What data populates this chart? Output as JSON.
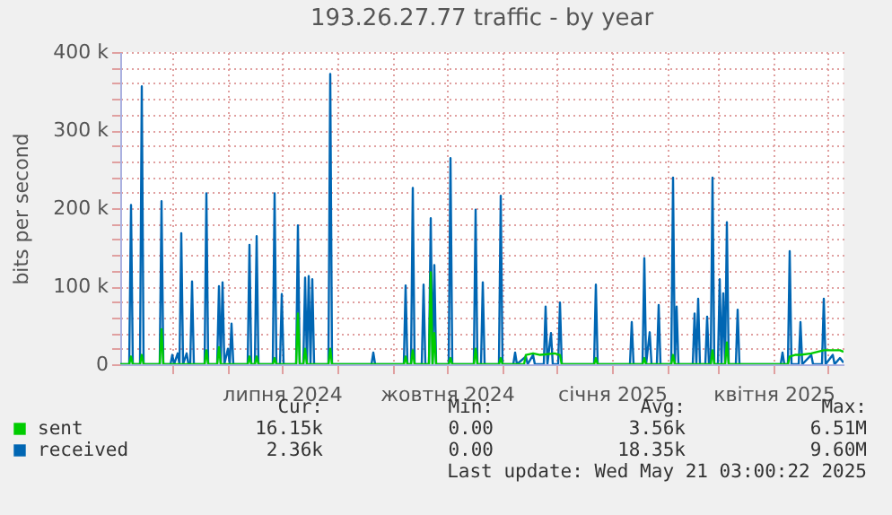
{
  "chart_data": {
    "type": "line",
    "title": "193.26.27.77 traffic - by year",
    "ylabel": "bits per second",
    "xlim": [
      "2024-04-02",
      "2025-05-10"
    ],
    "ylim": [
      0,
      400000
    ],
    "xticks": [
      {
        "value": "2024-05-01",
        "label": null
      },
      {
        "value": "2024-06-01",
        "label": null
      },
      {
        "value": "2024-07-01",
        "label": "липня 2024"
      },
      {
        "value": "2024-08-01",
        "label": null
      },
      {
        "value": "2024-09-01",
        "label": null
      },
      {
        "value": "2024-10-01",
        "label": "жовтня 2024"
      },
      {
        "value": "2024-11-01",
        "label": null
      },
      {
        "value": "2024-12-01",
        "label": null
      },
      {
        "value": "2025-01-01",
        "label": "січня 2025"
      },
      {
        "value": "2025-02-01",
        "label": null
      },
      {
        "value": "2025-03-01",
        "label": null
      },
      {
        "value": "2025-04-01",
        "label": "квітня 2025"
      },
      {
        "value": "2025-05-01",
        "label": null
      }
    ],
    "yticks": [
      {
        "value": 0,
        "label": "0"
      },
      {
        "value": 20000,
        "label": null
      },
      {
        "value": 40000,
        "label": null
      },
      {
        "value": 60000,
        "label": null
      },
      {
        "value": 80000,
        "label": null
      },
      {
        "value": 100000,
        "label": "100 k"
      },
      {
        "value": 120000,
        "label": null
      },
      {
        "value": 140000,
        "label": null
      },
      {
        "value": 160000,
        "label": null
      },
      {
        "value": 180000,
        "label": null
      },
      {
        "value": 200000,
        "label": "200 k"
      },
      {
        "value": 220000,
        "label": null
      },
      {
        "value": 240000,
        "label": null
      },
      {
        "value": 260000,
        "label": null
      },
      {
        "value": 280000,
        "label": null
      },
      {
        "value": 300000,
        "label": "300 k"
      },
      {
        "value": 320000,
        "label": null
      },
      {
        "value": 340000,
        "label": null
      },
      {
        "value": 360000,
        "label": null
      },
      {
        "value": 380000,
        "label": null
      },
      {
        "value": 400000,
        "label": "400 k"
      }
    ],
    "grid": true,
    "legend": "bottom left",
    "series": [
      {
        "name": "sent",
        "color": "#00cc00",
        "x": [
          "2024-04-02",
          "2024-04-07",
          "2024-04-08",
          "2024-04-09",
          "2024-04-13",
          "2024-04-14",
          "2024-04-15",
          "2024-04-24",
          "2024-04-25",
          "2024-04-26",
          "2024-05-19",
          "2024-05-20",
          "2024-05-21",
          "2024-05-26",
          "2024-05-27",
          "2024-05-28",
          "2024-06-12",
          "2024-06-13",
          "2024-06-14",
          "2024-06-16",
          "2024-06-17",
          "2024-06-18",
          "2024-06-26",
          "2024-06-27",
          "2024-06-28",
          "2024-07-09",
          "2024-07-10",
          "2024-07-11",
          "2024-07-13",
          "2024-07-14",
          "2024-07-15",
          "2024-07-27",
          "2024-07-28",
          "2024-07-29",
          "2024-09-07",
          "2024-09-08",
          "2024-09-09",
          "2024-09-11",
          "2024-09-12",
          "2024-09-13",
          "2024-09-21",
          "2024-09-22",
          "2024-09-23",
          "2024-09-24",
          "2024-09-25",
          "2024-10-02",
          "2024-10-03",
          "2024-10-04",
          "2024-10-16",
          "2024-10-17",
          "2024-10-18",
          "2024-10-30",
          "2024-10-31",
          "2024-11-01",
          "2024-11-08",
          "2024-11-13",
          "2024-11-14",
          "2024-11-18",
          "2024-11-22",
          "2024-11-26",
          "2024-11-30",
          "2024-12-03",
          "2024-12-04",
          "2024-12-22",
          "2024-12-23",
          "2024-12-24",
          "2025-01-18",
          "2025-01-19",
          "2025-01-20",
          "2025-02-03",
          "2025-02-04",
          "2025-02-05",
          "2025-02-25",
          "2025-02-26",
          "2025-02-27",
          "2025-03-05",
          "2025-03-06",
          "2025-03-07",
          "2025-04-09",
          "2025-04-10",
          "2025-04-13",
          "2025-04-16",
          "2025-04-22",
          "2025-04-29",
          "2025-05-04",
          "2025-05-08",
          "2025-05-10"
        ],
        "values": [
          0,
          0,
          10000,
          0,
          0,
          12000,
          0,
          0,
          45000,
          0,
          0,
          18000,
          0,
          0,
          22000,
          0,
          0,
          10000,
          0,
          0,
          10000,
          0,
          0,
          8000,
          0,
          0,
          65000,
          0,
          0,
          20000,
          0,
          0,
          20000,
          0,
          0,
          10000,
          0,
          0,
          18000,
          0,
          0,
          118000,
          0,
          40000,
          0,
          0,
          8000,
          0,
          0,
          20000,
          0,
          0,
          8000,
          0,
          0,
          0,
          12000,
          14000,
          12000,
          13000,
          14000,
          12000,
          0,
          0,
          8000,
          0,
          0,
          8000,
          0,
          0,
          12000,
          0,
          0,
          18000,
          0,
          0,
          28000,
          0,
          0,
          10000,
          12000,
          12000,
          14000,
          18000,
          18000,
          18000,
          16000
        ]
      },
      {
        "name": "received",
        "color": "#0066b3",
        "x": [
          "2024-04-02",
          "2024-04-07",
          "2024-04-08",
          "2024-04-09",
          "2024-04-13",
          "2024-04-14",
          "2024-04-15",
          "2024-04-24",
          "2024-04-25",
          "2024-04-26",
          "2024-04-30",
          "2024-05-01",
          "2024-05-02",
          "2024-05-04",
          "2024-05-05",
          "2024-05-06",
          "2024-05-07",
          "2024-05-09",
          "2024-05-10",
          "2024-05-11",
          "2024-05-12",
          "2024-05-13",
          "2024-05-19",
          "2024-05-20",
          "2024-05-21",
          "2024-05-26",
          "2024-05-27",
          "2024-05-28",
          "2024-05-29",
          "2024-05-30",
          "2024-06-01",
          "2024-06-02",
          "2024-06-03",
          "2024-06-04",
          "2024-06-12",
          "2024-06-13",
          "2024-06-14",
          "2024-06-16",
          "2024-06-17",
          "2024-06-18",
          "2024-06-26",
          "2024-06-27",
          "2024-06-28",
          "2024-06-30",
          "2024-07-01",
          "2024-07-02",
          "2024-07-09",
          "2024-07-10",
          "2024-07-11",
          "2024-07-13",
          "2024-07-14",
          "2024-07-15",
          "2024-07-16",
          "2024-07-17",
          "2024-07-18",
          "2024-07-19",
          "2024-07-27",
          "2024-07-28",
          "2024-07-29",
          "2024-08-20",
          "2024-08-21",
          "2024-08-22",
          "2024-09-07",
          "2024-09-08",
          "2024-09-09",
          "2024-09-11",
          "2024-09-12",
          "2024-09-13",
          "2024-09-17",
          "2024-09-18",
          "2024-09-19",
          "2024-09-21",
          "2024-09-22",
          "2024-09-23",
          "2024-09-24",
          "2024-09-25",
          "2024-10-02",
          "2024-10-03",
          "2024-10-04",
          "2024-10-16",
          "2024-10-17",
          "2024-10-18",
          "2024-10-20",
          "2024-10-21",
          "2024-10-22",
          "2024-10-30",
          "2024-10-31",
          "2024-11-01",
          "2024-11-07",
          "2024-11-08",
          "2024-11-09",
          "2024-11-14",
          "2024-11-15",
          "2024-11-18",
          "2024-11-19",
          "2024-11-24",
          "2024-11-25",
          "2024-11-26",
          "2024-11-28",
          "2024-11-29",
          "2024-12-02",
          "2024-12-03",
          "2024-12-04",
          "2024-12-22",
          "2024-12-23",
          "2024-12-24",
          "2025-01-11",
          "2025-01-12",
          "2025-01-13",
          "2025-01-18",
          "2025-01-19",
          "2025-01-20",
          "2025-01-22",
          "2025-01-23",
          "2025-01-26",
          "2025-01-27",
          "2025-01-28",
          "2025-02-03",
          "2025-02-04",
          "2025-02-05",
          "2025-02-06",
          "2025-02-07",
          "2025-02-15",
          "2025-02-16",
          "2025-02-17",
          "2025-02-18",
          "2025-02-19",
          "2025-02-22",
          "2025-02-23",
          "2025-02-24",
          "2025-02-25",
          "2025-02-26",
          "2025-02-27",
          "2025-03-01",
          "2025-03-02",
          "2025-03-03",
          "2025-03-04",
          "2025-03-05",
          "2025-03-06",
          "2025-03-07",
          "2025-03-11",
          "2025-03-12",
          "2025-03-13",
          "2025-04-05",
          "2025-04-06",
          "2025-04-07",
          "2025-04-09",
          "2025-04-10",
          "2025-04-11",
          "2025-04-15",
          "2025-04-16",
          "2025-04-17",
          "2025-04-22",
          "2025-04-23",
          "2025-04-28",
          "2025-04-29",
          "2025-04-30",
          "2025-05-04",
          "2025-05-05",
          "2025-05-08",
          "2025-05-10"
        ],
        "values": [
          0,
          0,
          204000,
          0,
          0,
          356000,
          0,
          0,
          209000,
          0,
          0,
          12000,
          0,
          14000,
          0,
          168000,
          0,
          14000,
          0,
          0,
          106000,
          0,
          0,
          219000,
          0,
          0,
          100000,
          0,
          105000,
          0,
          20000,
          0,
          52000,
          0,
          0,
          153000,
          0,
          0,
          164000,
          0,
          0,
          219000,
          0,
          0,
          90000,
          0,
          0,
          178000,
          0,
          0,
          111000,
          0,
          113000,
          0,
          109000,
          0,
          0,
          372000,
          0,
          0,
          15000,
          0,
          0,
          101000,
          0,
          0,
          226000,
          0,
          0,
          102000,
          0,
          0,
          187000,
          0,
          127000,
          0,
          0,
          264000,
          0,
          0,
          198000,
          0,
          0,
          105000,
          0,
          0,
          216000,
          0,
          0,
          15000,
          0,
          10000,
          0,
          12000,
          0,
          0,
          74000,
          0,
          40000,
          0,
          0,
          79000,
          0,
          0,
          102000,
          0,
          0,
          54000,
          0,
          0,
          136000,
          0,
          41000,
          0,
          0,
          76000,
          0,
          0,
          239000,
          0,
          74000,
          0,
          0,
          65000,
          0,
          84000,
          0,
          0,
          61000,
          0,
          0,
          239000,
          0,
          0,
          109000,
          0,
          91000,
          0,
          182000,
          0,
          0,
          70000,
          0,
          0,
          15000,
          0,
          0,
          145000,
          0,
          0,
          54000,
          0,
          12000,
          0,
          0,
          84000,
          0,
          12000,
          0,
          8000,
          2000
        ]
      }
    ],
    "annotations": [
      "Cur:",
      "Min:",
      "Avg:",
      "Max:",
      "16.15k",
      "0.00",
      "3.56k",
      "6.51M",
      "2.36k",
      "0.00",
      "18.35k",
      "9.60M",
      "Last update: Wed May 21 03:00:22 2025"
    ]
  }
}
